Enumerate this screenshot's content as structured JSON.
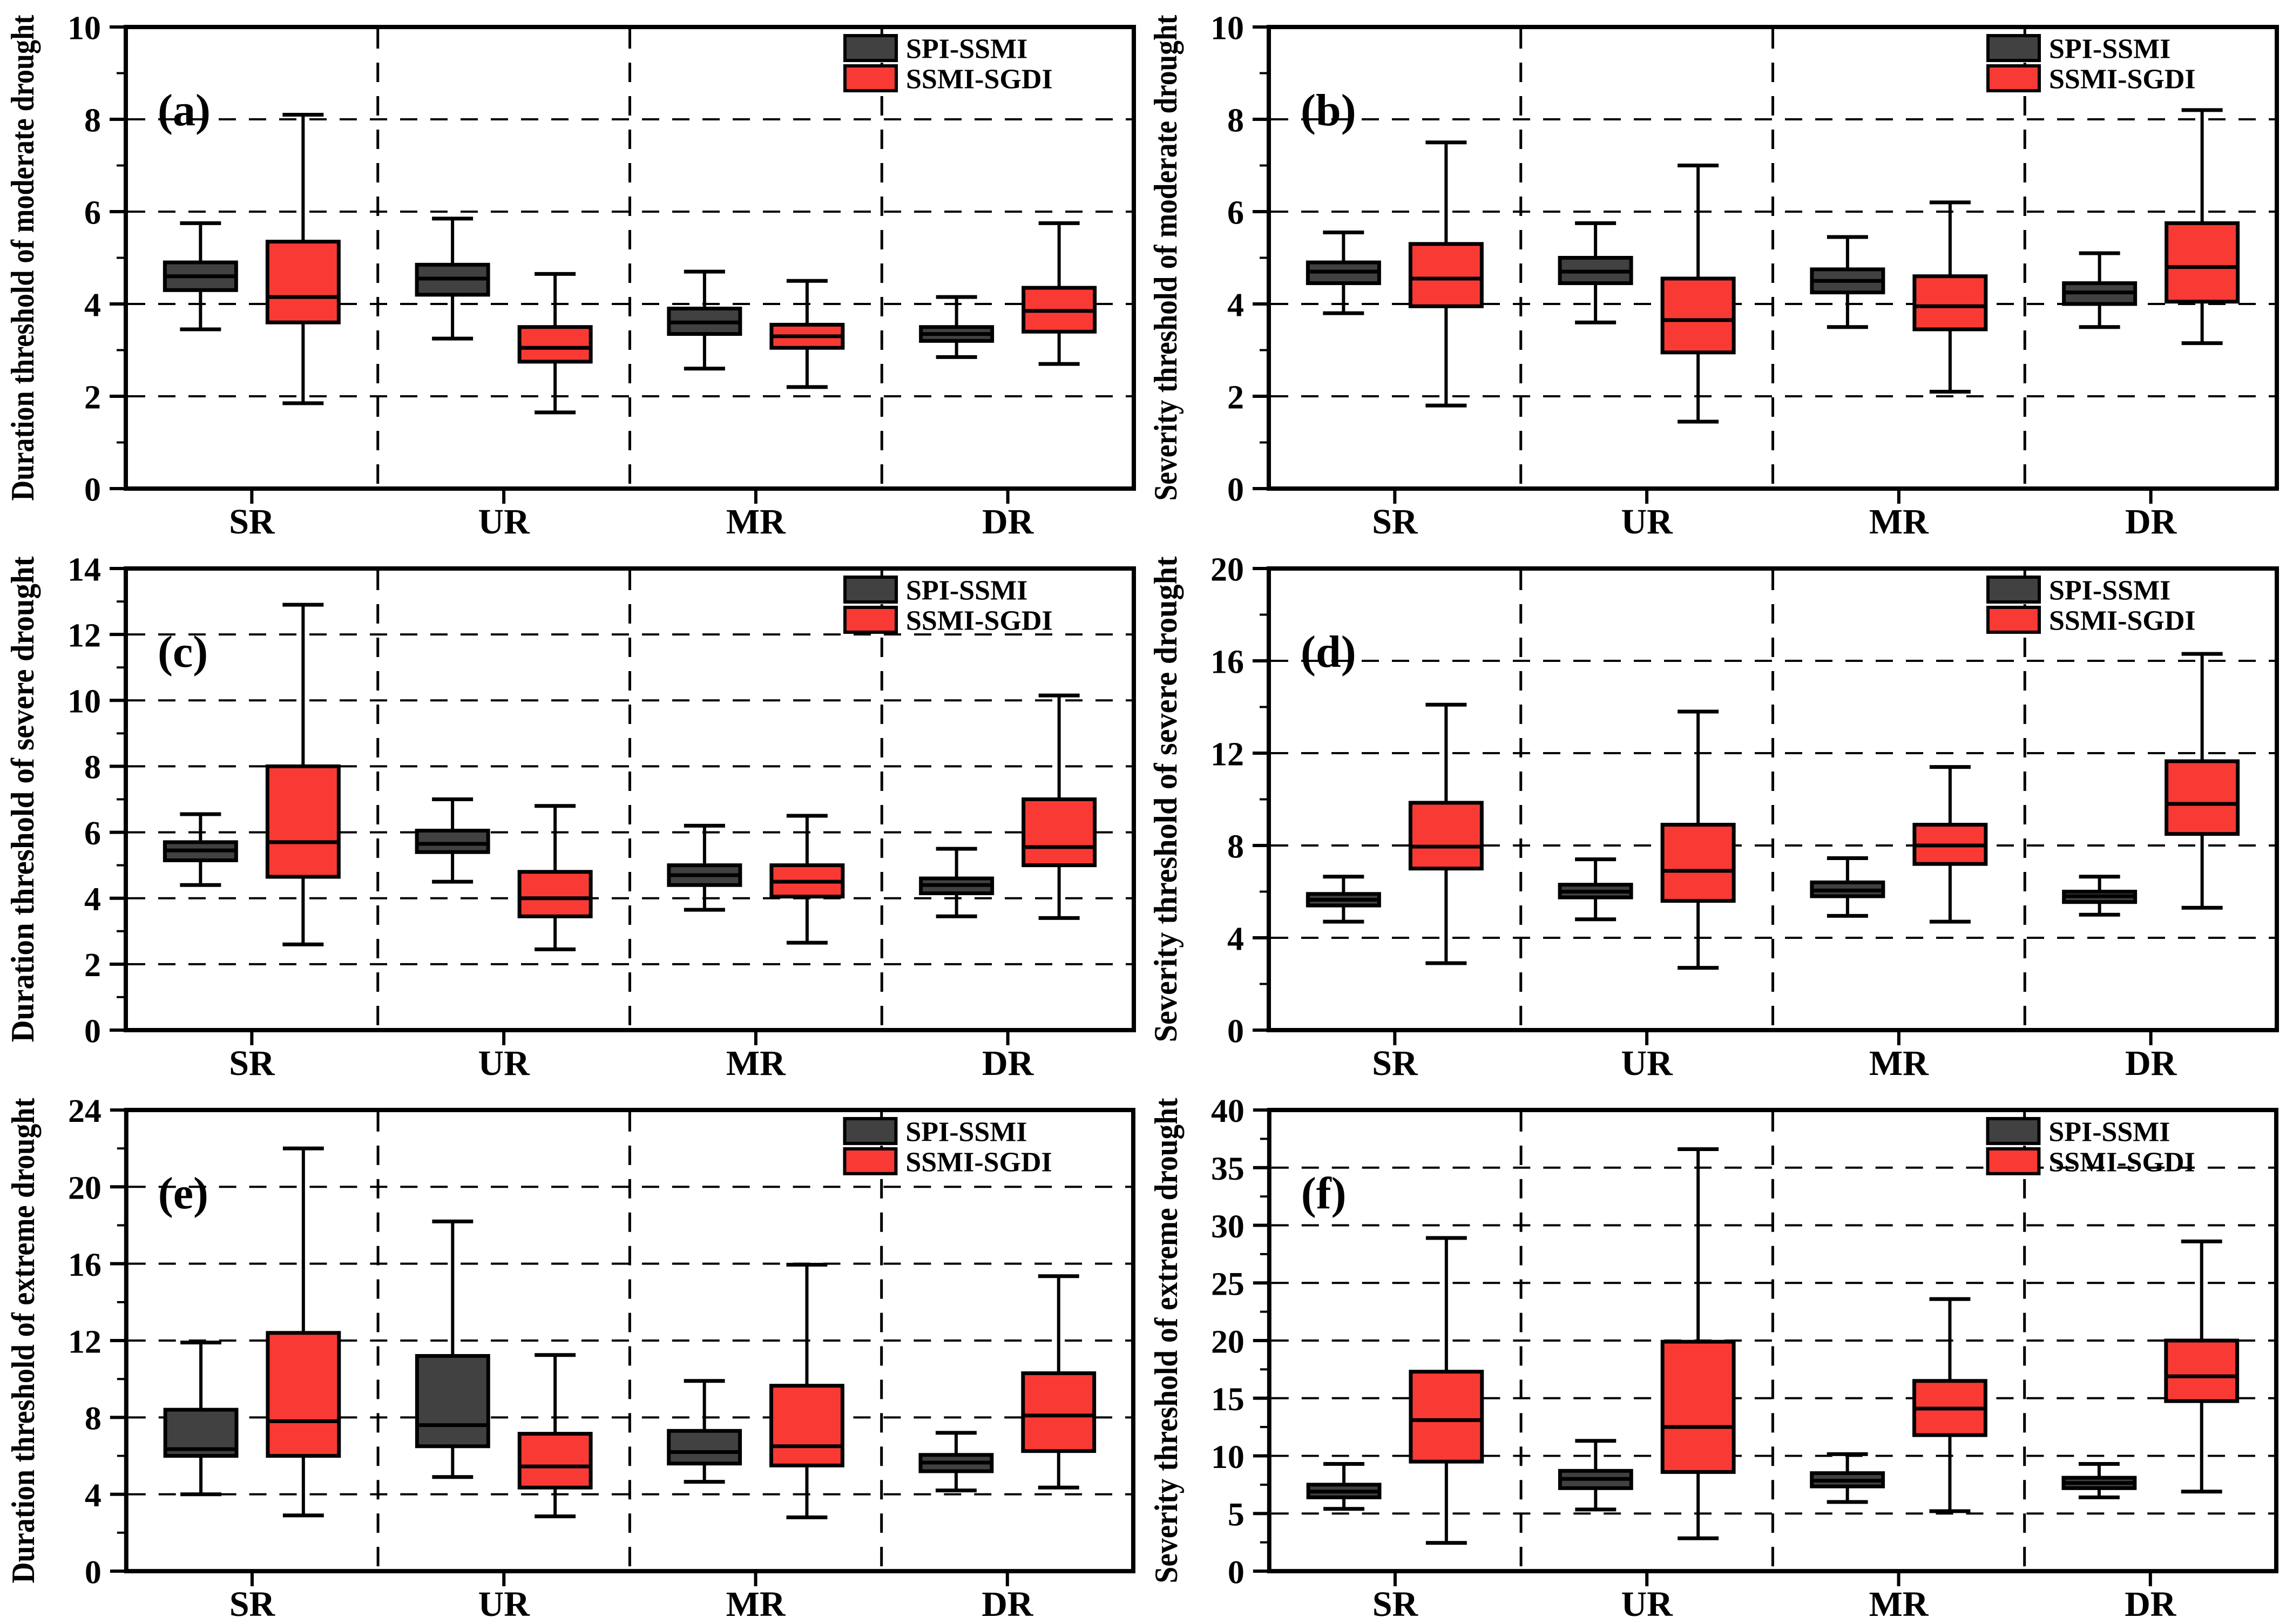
{
  "figure": {
    "type": "boxplot-grid",
    "background": "#ffffff",
    "axis_color": "#000000",
    "legend": {
      "entries": [
        {
          "label": "SPI-SSMI",
          "color": "#414141"
        },
        {
          "label": "SSMI-SGDI",
          "color": "#f93a34"
        }
      ]
    }
  },
  "chart_data": [
    {
      "type": "boxplot",
      "panel_letter": "(a)",
      "ylabel": "Duration threshold of moderate drought",
      "ylim": [
        0,
        10
      ],
      "ymajor": 2,
      "grid": true,
      "legend_position": "top-right",
      "categories": [
        "SR",
        "UR",
        "MR",
        "DR"
      ],
      "series": [
        {
          "name": "SPI-SSMI",
          "color": "#414141",
          "boxes_low_q1_med_q3_high": [
            [
              3.45,
              4.3,
              4.6,
              4.9,
              5.75
            ],
            [
              3.25,
              4.2,
              4.55,
              4.85,
              5.85
            ],
            [
              2.6,
              3.35,
              3.6,
              3.9,
              4.7
            ],
            [
              2.85,
              3.2,
              3.35,
              3.5,
              4.15
            ]
          ]
        },
        {
          "name": "SSMI-SGDI",
          "color": "#f93a34",
          "boxes_low_q1_med_q3_high": [
            [
              1.85,
              3.6,
              4.15,
              5.35,
              8.1
            ],
            [
              1.65,
              2.75,
              3.05,
              3.5,
              4.65
            ],
            [
              2.2,
              3.05,
              3.3,
              3.55,
              4.5
            ],
            [
              2.7,
              3.4,
              3.85,
              4.35,
              5.75
            ]
          ]
        }
      ]
    },
    {
      "type": "boxplot",
      "panel_letter": "(b)",
      "ylabel": "Severity threshold of moderate drought",
      "ylim": [
        0,
        10
      ],
      "ymajor": 2,
      "grid": true,
      "legend_position": "top-right",
      "categories": [
        "SR",
        "UR",
        "MR",
        "DR"
      ],
      "series": [
        {
          "name": "SPI-SSMI",
          "color": "#414141",
          "boxes_low_q1_med_q3_high": [
            [
              3.8,
              4.45,
              4.7,
              4.9,
              5.55
            ],
            [
              3.6,
              4.45,
              4.7,
              5.0,
              5.75
            ],
            [
              3.5,
              4.25,
              4.5,
              4.75,
              5.45
            ],
            [
              3.5,
              4.0,
              4.25,
              4.45,
              5.1
            ]
          ]
        },
        {
          "name": "SSMI-SGDI",
          "color": "#f93a34",
          "boxes_low_q1_med_q3_high": [
            [
              1.8,
              3.95,
              4.55,
              5.3,
              7.5
            ],
            [
              1.45,
              2.95,
              3.65,
              4.55,
              7.0
            ],
            [
              2.1,
              3.45,
              3.95,
              4.6,
              6.2
            ],
            [
              3.15,
              4.05,
              4.8,
              5.75,
              8.2
            ]
          ]
        }
      ]
    },
    {
      "type": "boxplot",
      "panel_letter": "(c)",
      "ylabel": "Duration threshold of severe drought",
      "ylim": [
        0,
        14
      ],
      "ymajor": 2,
      "grid": true,
      "legend_position": "top-right",
      "categories": [
        "SR",
        "UR",
        "MR",
        "DR"
      ],
      "series": [
        {
          "name": "SPI-SSMI",
          "color": "#414141",
          "boxes_low_q1_med_q3_high": [
            [
              4.4,
              5.15,
              5.45,
              5.7,
              6.55
            ],
            [
              4.5,
              5.4,
              5.65,
              6.05,
              7.0
            ],
            [
              3.65,
              4.4,
              4.7,
              5.0,
              6.2
            ],
            [
              3.45,
              4.15,
              4.4,
              4.6,
              5.5
            ]
          ]
        },
        {
          "name": "SSMI-SGDI",
          "color": "#f93a34",
          "boxes_low_q1_med_q3_high": [
            [
              2.6,
              4.65,
              5.7,
              8.0,
              12.9
            ],
            [
              2.45,
              3.45,
              4.0,
              4.8,
              6.8
            ],
            [
              2.65,
              4.05,
              4.5,
              5.0,
              6.5
            ],
            [
              3.4,
              5.0,
              5.55,
              7.0,
              10.15
            ]
          ]
        }
      ]
    },
    {
      "type": "boxplot",
      "panel_letter": "(d)",
      "ylabel": "Severity threshold of severe drought",
      "ylim": [
        0,
        20
      ],
      "ymajor": 4,
      "grid": true,
      "legend_position": "top-right",
      "categories": [
        "SR",
        "UR",
        "MR",
        "DR"
      ],
      "series": [
        {
          "name": "SPI-SSMI",
          "color": "#414141",
          "boxes_low_q1_med_q3_high": [
            [
              4.7,
              5.4,
              5.65,
              5.9,
              6.65
            ],
            [
              4.8,
              5.75,
              6.0,
              6.3,
              7.4
            ],
            [
              4.95,
              5.8,
              6.05,
              6.4,
              7.45
            ],
            [
              5.0,
              5.55,
              5.8,
              6.0,
              6.65
            ]
          ]
        },
        {
          "name": "SSMI-SGDI",
          "color": "#f93a34",
          "boxes_low_q1_med_q3_high": [
            [
              2.9,
              7.0,
              7.95,
              9.85,
              14.1
            ],
            [
              2.7,
              5.6,
              6.9,
              8.9,
              13.8
            ],
            [
              4.7,
              7.2,
              8.0,
              8.9,
              11.4
            ],
            [
              5.3,
              8.5,
              9.8,
              11.65,
              16.3
            ]
          ]
        }
      ]
    },
    {
      "type": "boxplot",
      "panel_letter": "(e)",
      "ylabel": "Duration threshold of extreme drought",
      "ylim": [
        0,
        24
      ],
      "ymajor": 4,
      "grid": true,
      "legend_position": "top-right",
      "categories": [
        "SR",
        "UR",
        "MR",
        "DR"
      ],
      "series": [
        {
          "name": "SPI-SSMI",
          "color": "#414141",
          "boxes_low_q1_med_q3_high": [
            [
              4.0,
              6.0,
              6.35,
              8.4,
              11.9
            ],
            [
              4.9,
              6.5,
              7.6,
              11.2,
              18.2
            ],
            [
              4.65,
              5.6,
              6.2,
              7.3,
              9.9
            ],
            [
              4.2,
              5.2,
              5.65,
              6.05,
              7.2
            ]
          ]
        },
        {
          "name": "SSMI-SGDI",
          "color": "#f93a34",
          "boxes_low_q1_med_q3_high": [
            [
              2.9,
              6.0,
              7.8,
              12.4,
              22.0
            ],
            [
              2.85,
              4.35,
              5.45,
              7.15,
              11.25
            ],
            [
              2.8,
              5.5,
              6.5,
              9.65,
              15.95
            ],
            [
              4.35,
              6.25,
              8.1,
              10.3,
              15.35
            ]
          ]
        }
      ]
    },
    {
      "type": "boxplot",
      "panel_letter": "(f)",
      "ylabel": "Severity threshold of extreme drought",
      "ylim": [
        0,
        40
      ],
      "ymajor": 5,
      "grid": true,
      "legend_position": "top-right",
      "categories": [
        "SR",
        "UR",
        "MR",
        "DR"
      ],
      "series": [
        {
          "name": "SPI-SSMI",
          "color": "#414141",
          "boxes_low_q1_med_q3_high": [
            [
              5.4,
              6.4,
              6.9,
              7.5,
              9.3
            ],
            [
              5.35,
              7.2,
              8.0,
              8.7,
              11.3
            ],
            [
              6.0,
              7.35,
              7.85,
              8.5,
              10.15
            ],
            [
              6.4,
              7.2,
              7.65,
              8.1,
              9.3
            ]
          ]
        },
        {
          "name": "SSMI-SGDI",
          "color": "#f93a34",
          "boxes_low_q1_med_q3_high": [
            [
              2.45,
              9.5,
              13.1,
              17.3,
              28.9
            ],
            [
              2.85,
              8.6,
              12.5,
              19.9,
              36.6
            ],
            [
              5.2,
              11.8,
              14.1,
              16.5,
              23.6
            ],
            [
              6.9,
              14.75,
              16.9,
              20.0,
              28.6
            ]
          ]
        }
      ]
    }
  ]
}
